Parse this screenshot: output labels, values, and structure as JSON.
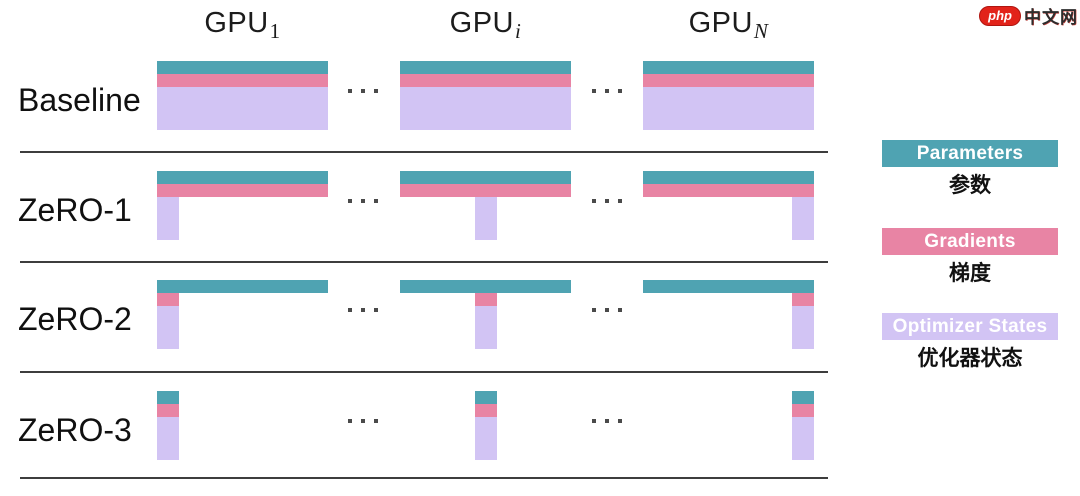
{
  "watermark": {
    "badge": "php",
    "site": "中文网"
  },
  "columns": [
    {
      "base": "GPU",
      "sub": "1",
      "italic": false
    },
    {
      "base": "GPU",
      "sub": "i",
      "italic": true
    },
    {
      "base": "GPU",
      "sub": "N",
      "italic": true
    }
  ],
  "rows": [
    {
      "label": "Baseline",
      "parameters": "full",
      "gradients": "full",
      "optimizer": "full"
    },
    {
      "label": "ZeRO-1",
      "parameters": "full",
      "gradients": "full",
      "optimizer": "shard"
    },
    {
      "label": "ZeRO-2",
      "parameters": "full",
      "gradients": "shard",
      "optimizer": "shard"
    },
    {
      "label": "ZeRO-3",
      "parameters": "shard",
      "gradients": "shard",
      "optimizer": "shard"
    }
  ],
  "legend": [
    {
      "key": "parameters",
      "label_en": "Parameters",
      "label_zh": "参数",
      "color": "#4FA3B2"
    },
    {
      "key": "gradients",
      "label_en": "Gradients",
      "label_zh": "梯度",
      "color": "#E884A4"
    },
    {
      "key": "optimizer",
      "label_en": "Optimizer States",
      "label_zh": "优化器状态",
      "color": "#D2C4F4"
    }
  ],
  "ellipsis": "···"
}
